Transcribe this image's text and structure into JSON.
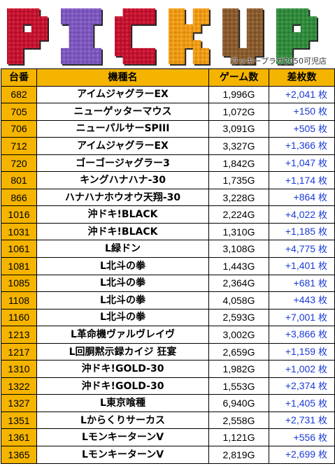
{
  "banner": {
    "title_letters": [
      "P",
      "I",
      "C",
      "K",
      "U",
      "P"
    ],
    "letter_colors": [
      "#c8102e",
      "#7e57c2",
      "#c8102e",
      "#f39c12",
      "#8b5a2b",
      "#2e8b3a"
    ],
    "store_name": "ラッキープラザ2050可児店"
  },
  "table": {
    "headers": {
      "no": "台番",
      "name": "機種名",
      "games": "ゲーム数",
      "diff": "差枚数"
    },
    "unit": "枚",
    "rows": [
      {
        "no": "682",
        "name": "アイムジャグラーEX",
        "games": "1,996G",
        "diff": "+2,041"
      },
      {
        "no": "705",
        "name": "ニューゲッターマウス",
        "games": "1,072G",
        "diff": "+150"
      },
      {
        "no": "706",
        "name": "ニューパルサーSPIII",
        "games": "3,091G",
        "diff": "+505"
      },
      {
        "no": "712",
        "name": "アイムジャグラーEX",
        "games": "3,327G",
        "diff": "+1,366"
      },
      {
        "no": "720",
        "name": "ゴーゴージャグラー3",
        "games": "1,842G",
        "diff": "+1,047"
      },
      {
        "no": "801",
        "name": "キングハナハナ-30",
        "games": "1,735G",
        "diff": "+1,174"
      },
      {
        "no": "866",
        "name": "ハナハナホウオウ天翔-30",
        "games": "3,228G",
        "diff": "+864"
      },
      {
        "no": "1016",
        "name": "沖ドキ!BLACK",
        "games": "2,224G",
        "diff": "+4,022"
      },
      {
        "no": "1031",
        "name": "沖ドキ!BLACK",
        "games": "1,310G",
        "diff": "+1,185"
      },
      {
        "no": "1061",
        "name": "L緑ドン",
        "games": "3,108G",
        "diff": "+4,775"
      },
      {
        "no": "1081",
        "name": "L北斗の拳",
        "games": "1,443G",
        "diff": "+1,401"
      },
      {
        "no": "1085",
        "name": "L北斗の拳",
        "games": "2,364G",
        "diff": "+681"
      },
      {
        "no": "1108",
        "name": "L北斗の拳",
        "games": "4,058G",
        "diff": "+443"
      },
      {
        "no": "1160",
        "name": "L北斗の拳",
        "games": "2,593G",
        "diff": "+7,001"
      },
      {
        "no": "1213",
        "name": "L革命機ヴァルヴレイヴ",
        "games": "3,002G",
        "diff": "+3,866"
      },
      {
        "no": "1217",
        "name": "L回胴黙示録カイジ 狂宴",
        "games": "2,659G",
        "diff": "+1,159"
      },
      {
        "no": "1310",
        "name": "沖ドキ!GOLD-30",
        "games": "1,982G",
        "diff": "+1,002"
      },
      {
        "no": "1322",
        "name": "沖ドキ!GOLD-30",
        "games": "1,553G",
        "diff": "+2,374"
      },
      {
        "no": "1327",
        "name": "L東京喰種",
        "games": "6,940G",
        "diff": "+1,405"
      },
      {
        "no": "1351",
        "name": "Lからくりサーカス",
        "games": "2,558G",
        "diff": "+2,731"
      },
      {
        "no": "1361",
        "name": "LモンキーターンV",
        "games": "1,121G",
        "diff": "+556"
      },
      {
        "no": "1365",
        "name": "LモンキーターンV",
        "games": "2,819G",
        "diff": "+2,699"
      }
    ]
  },
  "colors": {
    "header_bg": "#f4b400",
    "diff_text": "#1a3bd6",
    "border": "#000000"
  }
}
